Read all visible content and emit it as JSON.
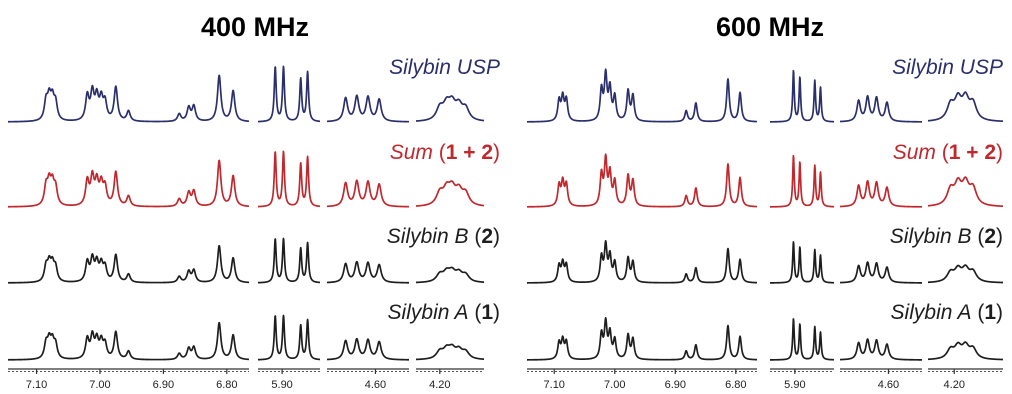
{
  "chart_data": [
    {
      "type": "line",
      "title": "400 MHz",
      "xlabel": "",
      "ylabel": "",
      "grid": false,
      "axis_segments": [
        {
          "ticks": [
            7.1,
            7.0,
            6.9,
            6.8
          ],
          "tick_labels": [
            "7.10",
            "7.00",
            "6.90",
            "6.80"
          ]
        },
        {
          "ticks": [
            5.9
          ],
          "tick_labels": [
            "5.90"
          ]
        },
        {
          "ticks": [
            4.6
          ],
          "tick_labels": [
            "4.60"
          ]
        },
        {
          "ticks": [
            4.2
          ],
          "tick_labels": [
            "4.20"
          ]
        }
      ],
      "series": [
        {
          "name": "Silybin USP",
          "label_parts": [
            {
              "text": "Silybin USP",
              "style": "italic"
            }
          ],
          "color": "#2b2f6b"
        },
        {
          "name": "Sum (1 + 2)",
          "label_parts": [
            {
              "text": "Sum",
              "style": "italic"
            },
            {
              "text": " (",
              "style": "plain"
            },
            {
              "text": "1 + 2",
              "style": "bold"
            },
            {
              "text": ")",
              "style": "plain"
            }
          ],
          "color": "#c0282d"
        },
        {
          "name": "Silybin B (2)",
          "label_parts": [
            {
              "text": "Silybin B",
              "style": "italic"
            },
            {
              "text": " (",
              "style": "plain"
            },
            {
              "text": "2",
              "style": "bold"
            },
            {
              "text": ")",
              "style": "plain"
            }
          ],
          "color": "#1e1e1e"
        },
        {
          "name": "Silybin A (1)",
          "label_parts": [
            {
              "text": "Silybin A",
              "style": "italic"
            },
            {
              "text": " (",
              "style": "plain"
            },
            {
              "text": "1",
              "style": "bold"
            },
            {
              "text": ")",
              "style": "plain"
            }
          ],
          "color": "#1e1e1e"
        }
      ]
    },
    {
      "type": "line",
      "title": "600 MHz",
      "xlabel": "",
      "ylabel": "",
      "grid": false,
      "axis_segments": [
        {
          "ticks": [
            7.1,
            7.0,
            6.9,
            6.8
          ],
          "tick_labels": [
            "7.10",
            "7.00",
            "6.90",
            "6.80"
          ]
        },
        {
          "ticks": [
            5.9
          ],
          "tick_labels": [
            "5.90"
          ]
        },
        {
          "ticks": [
            4.6
          ],
          "tick_labels": [
            "4.60"
          ]
        },
        {
          "ticks": [
            4.2
          ],
          "tick_labels": [
            "4.20"
          ]
        }
      ],
      "series": [
        {
          "name": "Silybin USP",
          "label_parts": [
            {
              "text": "Silybin USP",
              "style": "italic"
            }
          ],
          "color": "#2b2f6b"
        },
        {
          "name": "Sum (1 + 2)",
          "label_parts": [
            {
              "text": "Sum",
              "style": "italic"
            },
            {
              "text": " (",
              "style": "plain"
            },
            {
              "text": "1 + 2",
              "style": "bold"
            },
            {
              "text": ")",
              "style": "plain"
            }
          ],
          "color": "#c0282d"
        },
        {
          "name": "Silybin B (2)",
          "label_parts": [
            {
              "text": "Silybin B",
              "style": "italic"
            },
            {
              "text": " (",
              "style": "plain"
            },
            {
              "text": "2",
              "style": "bold"
            },
            {
              "text": ")",
              "style": "plain"
            }
          ],
          "color": "#1e1e1e"
        },
        {
          "name": "Silybin A (1)",
          "label_parts": [
            {
              "text": "Silybin A",
              "style": "italic"
            },
            {
              "text": " (",
              "style": "plain"
            },
            {
              "text": "1",
              "style": "bold"
            },
            {
              "text": ")",
              "style": "plain"
            }
          ],
          "color": "#1e1e1e"
        }
      ]
    }
  ]
}
